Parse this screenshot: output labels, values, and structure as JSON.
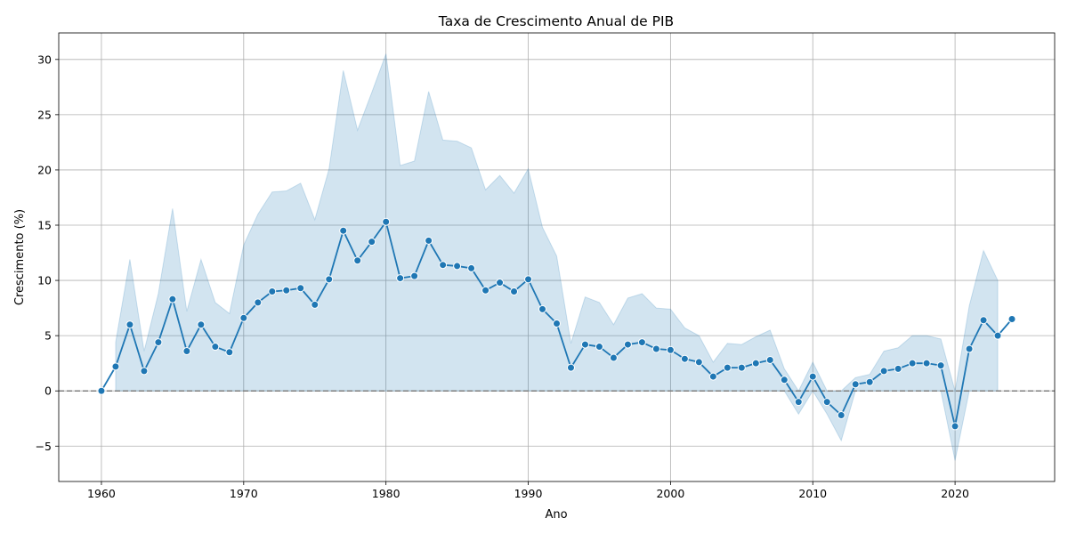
{
  "chart_data": {
    "type": "line",
    "title": "Taxa de Crescimento Anual de PIB",
    "xlabel": "Ano",
    "ylabel": "Crescimento (%)",
    "xlim": [
      1957,
      2027
    ],
    "ylim": [
      -8.2,
      32.4
    ],
    "xticks": [
      1960,
      1970,
      1980,
      1990,
      2000,
      2010,
      2020
    ],
    "yticks": [
      -5,
      0,
      5,
      10,
      15,
      20,
      25,
      30
    ],
    "ytick_labels": [
      "−5",
      "0",
      "5",
      "10",
      "15",
      "20",
      "25",
      "30"
    ],
    "grid": true,
    "reference_line": 0,
    "colors": {
      "line": "#1f77b4",
      "band": "#1f77b4",
      "reference": "#808080",
      "grid": "#b0b0b0"
    },
    "series": [
      {
        "x": [
          1960,
          1961,
          1962,
          1963,
          1964,
          1965,
          1966,
          1967,
          1968,
          1969,
          1970,
          1971,
          1972,
          1973,
          1974,
          1975,
          1976,
          1977,
          1978,
          1979,
          1980,
          1981,
          1982,
          1983,
          1984,
          1985,
          1986,
          1987,
          1988,
          1989,
          1990,
          1991,
          1992,
          1993,
          1994,
          1995,
          1996,
          1997,
          1998,
          1999,
          2000,
          2001,
          2002,
          2003,
          2004,
          2005,
          2006,
          2007,
          2008,
          2009,
          2010,
          2011,
          2012,
          2013,
          2014,
          2015,
          2016,
          2017,
          2018,
          2019,
          2020,
          2021,
          2022,
          2023,
          2024
        ],
        "values": [
          0.0,
          2.2,
          6.0,
          1.8,
          4.4,
          8.3,
          3.6,
          6.0,
          4.0,
          3.5,
          6.6,
          8.0,
          9.0,
          9.1,
          9.3,
          7.8,
          10.1,
          14.5,
          11.8,
          13.5,
          15.3,
          10.2,
          10.4,
          13.6,
          11.4,
          11.3,
          11.1,
          9.1,
          9.8,
          9.0,
          10.1,
          7.4,
          6.1,
          2.1,
          4.2,
          4.0,
          3.0,
          4.2,
          4.4,
          3.8,
          3.7,
          2.9,
          2.6,
          1.3,
          2.1,
          2.1,
          2.5,
          2.8,
          1.0,
          -1.0,
          1.3,
          -1.0,
          -2.2,
          0.6,
          0.8,
          1.8,
          2.0,
          2.5,
          2.5,
          2.3,
          -3.2,
          3.8,
          6.4,
          5.0,
          6.5
        ],
        "band_x": [
          1961,
          1962,
          1963,
          1964,
          1965,
          1966,
          1967,
          1968,
          1969,
          1970,
          1971,
          1972,
          1973,
          1974,
          1975,
          1976,
          1977,
          1978,
          1979,
          1980,
          1981,
          1982,
          1983,
          1984,
          1985,
          1986,
          1987,
          1988,
          1989,
          1990,
          1991,
          1992,
          1993,
          1994,
          1995,
          1996,
          1997,
          1998,
          1999,
          2000,
          2001,
          2002,
          2003,
          2004,
          2005,
          2006,
          2007,
          2008,
          2009,
          2010,
          2011,
          2012,
          2013,
          2014,
          2015,
          2016,
          2017,
          2018,
          2019,
          2020,
          2021,
          2022,
          2023
        ],
        "band_upper": [
          4.4,
          11.9,
          3.6,
          8.8,
          16.5,
          7.2,
          11.9,
          8.0,
          7.0,
          13.2,
          16.0,
          18.0,
          18.1,
          18.8,
          15.5,
          20.1,
          29.0,
          23.6,
          27.0,
          30.5,
          20.4,
          20.8,
          27.1,
          22.7,
          22.6,
          22.0,
          18.2,
          19.5,
          17.9,
          20.1,
          14.8,
          12.2,
          4.3,
          8.5,
          8.0,
          6.0,
          8.4,
          8.8,
          7.5,
          7.4,
          5.7,
          5.0,
          2.6,
          4.3,
          4.2,
          4.9,
          5.5,
          2.0,
          0.0,
          2.6,
          0.0,
          0.0,
          1.2,
          1.5,
          3.6,
          3.9,
          5.0,
          5.0,
          4.7,
          0.0,
          7.7,
          12.7,
          10.0
        ],
        "band_lower": [
          0.0,
          0.0,
          0.0,
          0.0,
          0.0,
          0.0,
          0.0,
          0.0,
          0.0,
          0.0,
          0.0,
          0.0,
          0.0,
          0.0,
          0.0,
          0.0,
          0.0,
          0.0,
          0.0,
          0.0,
          0.0,
          0.0,
          0.0,
          0.0,
          0.0,
          0.0,
          0.0,
          0.0,
          0.0,
          0.0,
          0.0,
          0.0,
          0.0,
          0.0,
          0.0,
          0.0,
          0.0,
          0.0,
          0.0,
          0.0,
          0.0,
          0.0,
          0.0,
          0.0,
          0.0,
          0.0,
          0.0,
          0.0,
          -2.1,
          0.0,
          -2.1,
          -4.5,
          0.0,
          0.0,
          0.0,
          0.0,
          0.0,
          0.0,
          0.0,
          -6.3,
          0.0,
          0.0,
          0.0
        ]
      }
    ]
  }
}
